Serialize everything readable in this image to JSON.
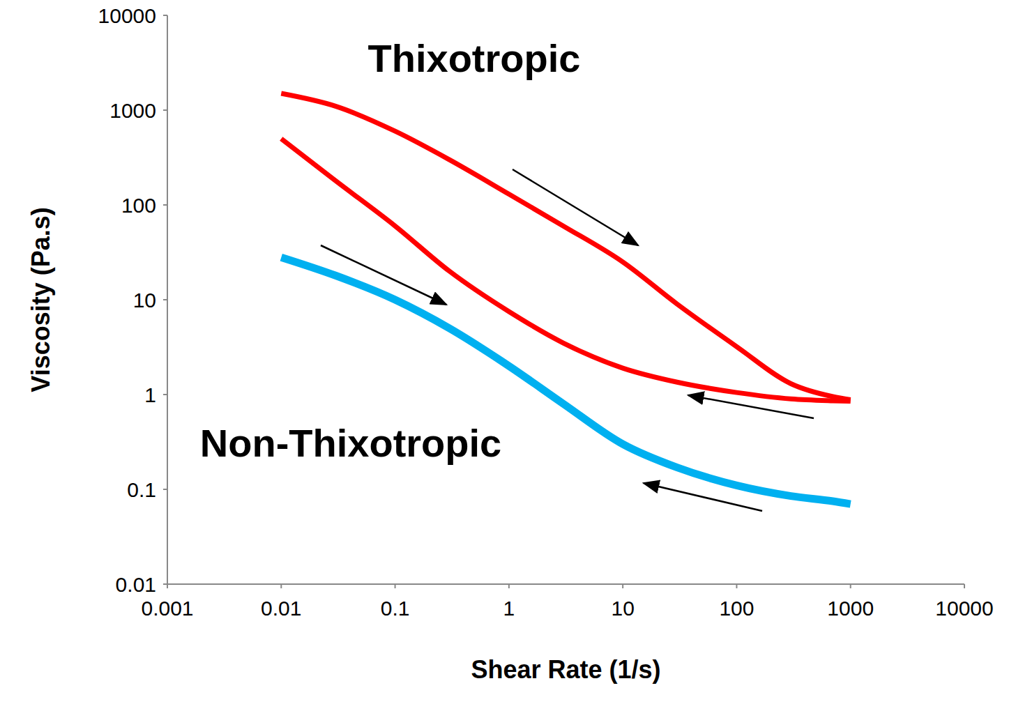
{
  "chart_data": {
    "type": "line",
    "x_label": "Shear Rate (1/s)",
    "y_label": "Viscosity (Pa.s)",
    "log": true,
    "grid": false,
    "x": [
      0.01,
      0.03,
      0.1,
      0.3,
      1,
      3,
      10,
      30,
      100,
      300,
      700,
      1000
    ],
    "xlim": [
      0.001,
      10000
    ],
    "xticks": [
      0.001,
      0.01,
      0.1,
      1,
      10,
      100,
      1000,
      10000
    ],
    "ylim": [
      0.01,
      10000
    ],
    "yticks": [
      0.01,
      0.1,
      1,
      10,
      100,
      1000,
      10000
    ],
    "series": [
      {
        "color": "#ff0000",
        "values": [
          1500,
          1100,
          600,
          300,
          130,
          60,
          25,
          9,
          3.2,
          1.3,
          0.95,
          0.88
        ]
      },
      {
        "color": "#ff0000",
        "values": [
          500,
          180,
          60,
          20,
          7.5,
          3.5,
          1.9,
          1.35,
          1.05,
          0.9,
          0.86,
          0.85
        ]
      },
      {
        "color": "#00b0f0",
        "values": [
          28,
          18,
          10,
          5,
          2,
          0.8,
          0.3,
          0.17,
          0.11,
          0.085,
          0.075,
          0.07
        ]
      }
    ],
    "annotations": [
      {
        "text": "Thixotropic"
      },
      {
        "text": "Non-Thixotropic"
      }
    ]
  }
}
